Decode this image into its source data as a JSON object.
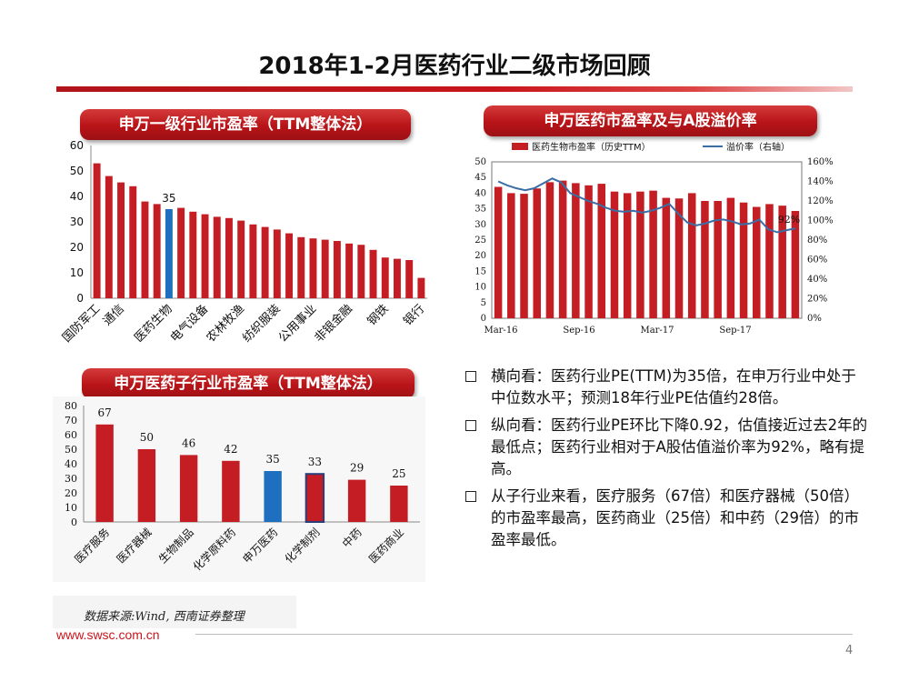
{
  "page": {
    "title": "2018年1-2月医药行业二级市场回顾",
    "source": "数据来源:Wind, 西南证券整理",
    "url": "www.swsc.com.cn",
    "page_number": "4"
  },
  "colors": {
    "bar": "#c41e24",
    "highlight": "#1f6fc1",
    "line": "#3a6ea5",
    "accent": "#c8151b"
  },
  "panels": {
    "industry_pe": "申万一级行业市盈率（TTM整体法）",
    "pe_premium": "申万医药市盈率及与A股溢价率",
    "subsector_pe": "申万医药子行业市盈率（TTM整体法）"
  },
  "bullets": [
    "横向看：医药行业PE(TTM)为35倍，在申万行业中处于中位数水平；预测18年行业PE估值约28倍。",
    "纵向看：医药行业PE环比下降0.92，估值接近过去2年的最低点；医药行业相对于A股估值溢价率为92%，略有提高。",
    "从子行业来看，医疗服务（67倍）和医疗器械（50倍）的市盈率最高，医药商业（25倍）和中药（29倍）的市盈率最低。"
  ],
  "chart_data": [
    {
      "type": "bar",
      "title": "申万一级行业市盈率（TTM整体法）",
      "ylim": [
        0,
        60
      ],
      "yticks": [
        0,
        10,
        20,
        30,
        40,
        50,
        60
      ],
      "values": [
        53,
        48,
        45.5,
        44,
        38,
        37,
        35,
        35.5,
        34,
        33,
        32,
        31.5,
        30.5,
        29,
        28,
        27,
        25.5,
        24,
        23.5,
        23,
        22.5,
        21.5,
        21,
        19,
        16,
        15.5,
        15,
        8
      ],
      "highlight_index": 6,
      "highlight_label": "35",
      "tick_labels": [
        {
          "index": 0,
          "label": "国防军工"
        },
        {
          "index": 2,
          "label": "通信"
        },
        {
          "index": 6,
          "label": "医药生物"
        },
        {
          "index": 9,
          "label": "电气设备"
        },
        {
          "index": 12,
          "label": "农林牧渔"
        },
        {
          "index": 15,
          "label": "纺织服装"
        },
        {
          "index": 18,
          "label": "公用事业"
        },
        {
          "index": 21,
          "label": "非银金融"
        },
        {
          "index": 24,
          "label": "钢铁"
        },
        {
          "index": 27,
          "label": "银行"
        }
      ]
    },
    {
      "type": "bar+line",
      "title": "申万医药市盈率及与A股溢价率",
      "legend": [
        "医药生物市盈率（历史TTM）",
        "溢价率（右轴）"
      ],
      "ylim": [
        0,
        50
      ],
      "yticks": [
        0,
        5,
        10,
        15,
        20,
        25,
        30,
        35,
        40,
        45,
        50
      ],
      "y2lim": [
        0,
        160
      ],
      "y2ticks": [
        "0%",
        "20%",
        "40%",
        "60%",
        "80%",
        "100%",
        "120%",
        "140%",
        "160%"
      ],
      "x_labels": [
        "Mar-16",
        "Sep-16",
        "Mar-17",
        "Sep-17"
      ],
      "pe_values": [
        42,
        40,
        39.8,
        41.5,
        43.5,
        44,
        43.2,
        42.5,
        43,
        40.5,
        40,
        40.5,
        40.8,
        38.5,
        38.3,
        40,
        37.5,
        37.5,
        38.5,
        37,
        35.6,
        36.5,
        36,
        34.3
      ],
      "premium_values": [
        140,
        136,
        133,
        131,
        133,
        138,
        143,
        139,
        128,
        124,
        120,
        117,
        113,
        110,
        109,
        110,
        108,
        110,
        113,
        117,
        107,
        98,
        95,
        97,
        100,
        101,
        99,
        96,
        97,
        101,
        91,
        88,
        90,
        92
      ],
      "end_label": "92%"
    },
    {
      "type": "bar",
      "title": "申万医药子行业市盈率（TTM整体法）",
      "ylim": [
        0,
        80
      ],
      "yticks": [
        0,
        10,
        20,
        30,
        40,
        50,
        60,
        70,
        80
      ],
      "categories": [
        "医疗服务",
        "医疗器械",
        "生物制品",
        "化学原料药",
        "申万医药",
        "化学制剂",
        "中药",
        "医药商业"
      ],
      "values": [
        67,
        50,
        46,
        42,
        35,
        33,
        29,
        25
      ],
      "highlight_index": 4,
      "outlined_index": 5
    }
  ]
}
